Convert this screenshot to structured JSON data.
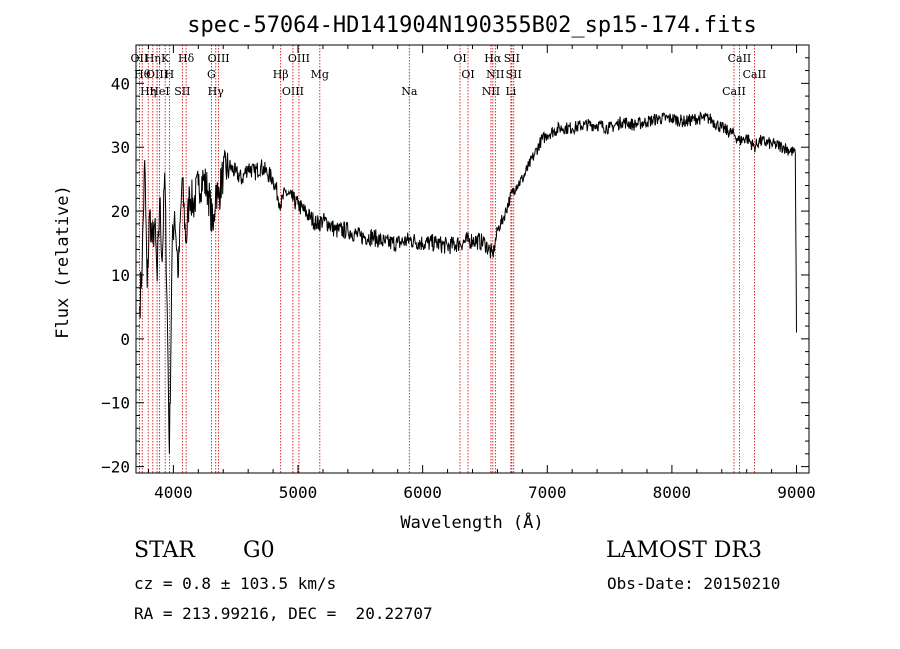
{
  "chart_data": {
    "type": "line",
    "title": "spec-57064-HD141904N190355B02_sp15-174.fits",
    "xlabel": "Wavelength (Å)",
    "ylabel": "Flux (relative)",
    "xlim": [
      3700,
      9100
    ],
    "ylim": [
      -21,
      46
    ],
    "xticks": [
      4000,
      5000,
      6000,
      7000,
      8000,
      9000
    ],
    "yticks": [
      -20,
      -10,
      0,
      10,
      20,
      30,
      40
    ],
    "grid": false,
    "line_color": "#000000",
    "marker_color": "#cc0000",
    "series": [
      {
        "x": [
          3730,
          3750,
          3770,
          3790,
          3810,
          3830,
          3850,
          3870,
          3890,
          3910,
          3930,
          3950,
          3968,
          3990,
          4010,
          4040,
          4070,
          4102,
          4130,
          4160,
          4200,
          4240,
          4280,
          4320,
          4340,
          4360,
          4400,
          4450,
          4500,
          4550,
          4600,
          4650,
          4700,
          4750,
          4800,
          4861,
          4900,
          4950,
          5000,
          5050,
          5100,
          5150,
          5200,
          5250,
          5300,
          5400,
          5500,
          5600,
          5700,
          5800,
          5900,
          6000,
          6100,
          6200,
          6300,
          6400,
          6500,
          6563,
          6600,
          6650,
          6700,
          6750,
          6800,
          6850,
          6900,
          6950,
          7000,
          7100,
          7200,
          7300,
          7400,
          7500,
          7600,
          7700,
          7800,
          7900,
          8000,
          8100,
          8200,
          8300,
          8400,
          8498,
          8542,
          8600,
          8662,
          8700,
          8800,
          8900,
          8990,
          9000
        ],
        "y": [
          5,
          12,
          28,
          8,
          20,
          15,
          18,
          9,
          22,
          12,
          26,
          5,
          -18,
          14,
          20,
          10,
          25,
          15,
          23,
          21,
          24,
          25,
          23,
          17,
          24,
          22,
          26,
          27,
          26,
          25,
          27,
          26,
          27,
          26,
          25,
          21,
          23,
          22,
          21,
          20,
          19,
          18,
          18.5,
          18,
          17,
          17,
          16,
          16,
          15,
          15,
          15.5,
          15,
          15,
          14.5,
          15,
          15.5,
          15,
          13,
          17,
          19,
          22,
          24,
          25,
          27,
          29,
          31,
          32,
          33,
          33,
          33.5,
          33.5,
          33,
          34,
          33.5,
          34,
          34.5,
          34.5,
          34,
          34.5,
          34.5,
          33,
          32,
          31,
          31.5,
          30,
          31,
          30.5,
          30,
          29,
          1
        ]
      }
    ],
    "lines": [
      {
        "wl": 3727,
        "label": "OII"
      },
      {
        "wl": 3750,
        "label": "Hθ"
      },
      {
        "wl": 3798,
        "label": "Hη"
      },
      {
        "wl": 3835,
        "label": "Hη"
      },
      {
        "wl": 3869,
        "label": "OIII"
      },
      {
        "wl": 3889,
        "label": "HeI"
      },
      {
        "wl": 3934,
        "label": "K"
      },
      {
        "wl": 3968,
        "label": "H"
      },
      {
        "wl": 4072,
        "label": "SII"
      },
      {
        "wl": 4102,
        "label": "Hδ"
      },
      {
        "wl": 4305,
        "label": "G"
      },
      {
        "wl": 4340,
        "label": "Hγ"
      },
      {
        "wl": 4363,
        "label": "OIII"
      },
      {
        "wl": 4861,
        "label": "Hβ"
      },
      {
        "wl": 4959,
        "label": "OIII"
      },
      {
        "wl": 5007,
        "label": "OIII"
      },
      {
        "wl": 5175,
        "label": "Mg"
      },
      {
        "wl": 5893,
        "label": "Na"
      },
      {
        "wl": 6300,
        "label": "OI"
      },
      {
        "wl": 6364,
        "label": "OI"
      },
      {
        "wl": 6548,
        "label": "NII"
      },
      {
        "wl": 6563,
        "label": "Hα"
      },
      {
        "wl": 6583,
        "label": "NII"
      },
      {
        "wl": 6708,
        "label": "Li"
      },
      {
        "wl": 6716,
        "label": "SII"
      },
      {
        "wl": 6731,
        "label": "SII"
      },
      {
        "wl": 8498,
        "label": "CaII"
      },
      {
        "wl": 8542,
        "label": "CaII"
      },
      {
        "wl": 8662,
        "label": "CaII"
      }
    ]
  },
  "info": {
    "class": "STAR",
    "subclass": "G0",
    "survey": "LAMOST DR3",
    "cz": "cz = 0.8 ± 103.5 km/s",
    "obs_date": "Obs-Date: 20150210",
    "coords": "RA = 213.99216, DEC =  20.22707"
  }
}
